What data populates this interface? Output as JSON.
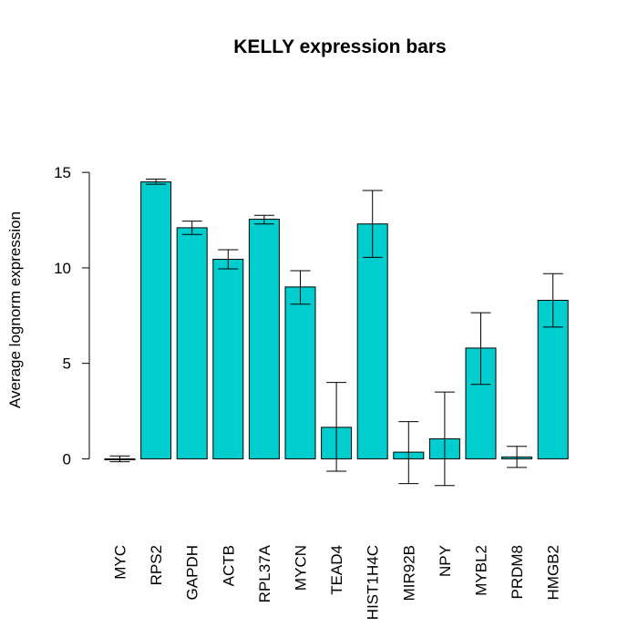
{
  "chart_data": {
    "type": "bar",
    "title": "KELLY expression bars",
    "xlabel": "",
    "ylabel": "Average lognorm expression",
    "ylim": [
      -2.7,
      18.3
    ],
    "yticks": [
      0,
      5,
      10,
      15
    ],
    "ytick_labels": [
      "0",
      "5",
      "10",
      "15"
    ],
    "grid": false,
    "legend": "none",
    "bar_color": "#00CDCD",
    "categories": [
      "MYC",
      "RPS2",
      "GAPDH",
      "ACTB",
      "RPL37A",
      "MYCN",
      "TEAD4",
      "HIST1H4C",
      "MIR92B",
      "NPY",
      "MYBL2",
      "PRDM8",
      "HMGB2"
    ],
    "values": [
      0.0,
      14.5,
      12.1,
      10.45,
      12.55,
      9.0,
      1.65,
      12.3,
      0.35,
      1.05,
      5.8,
      0.1,
      8.3
    ],
    "error_low": [
      -0.15,
      14.38,
      11.75,
      9.95,
      12.3,
      8.1,
      -0.65,
      10.55,
      -1.3,
      -1.4,
      3.9,
      -0.45,
      6.9
    ],
    "error_high": [
      0.15,
      14.65,
      12.45,
      10.95,
      12.75,
      9.85,
      4.0,
      14.05,
      1.95,
      3.5,
      7.65,
      0.65,
      9.7
    ]
  }
}
